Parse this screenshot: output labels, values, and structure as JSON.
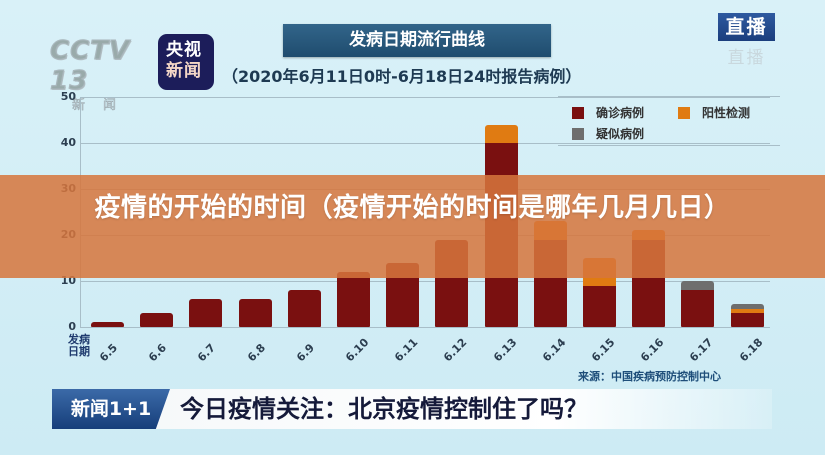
{
  "header": {
    "channel_logo": "CCTV 13",
    "channel_sub": "新闻",
    "app_badge_line1": "央视",
    "app_badge_line2": "新闻",
    "title": "发病日期流行曲线",
    "subtitle": "（2020年6月11日0时-6月18日24时报告病例）",
    "live_badge": "直播",
    "live_badge_shadow": "直播"
  },
  "banner": {
    "text": "疫情的开始的时间（疫情开始的时间是哪年几月几日）"
  },
  "footer": {
    "source": "来源：中国疾病预防控制中心",
    "program_tag": "新闻1+1",
    "headline": "今日疫情关注：北京疫情控制住了吗？"
  },
  "colors": {
    "confirmed": "#7a1010",
    "positive": "#e07b12",
    "suspected": "#6e6e6e",
    "banner": "#d6763c"
  },
  "chart_data": {
    "type": "bar",
    "stacked": true,
    "title": "发病日期流行曲线",
    "subtitle": "（2020年6月11日0时-6月18日24时报告病例）",
    "xlabel": "发病日期",
    "ylabel": "",
    "ylim": [
      0,
      50
    ],
    "yticks": [
      0,
      10,
      20,
      30,
      40,
      50
    ],
    "grid": true,
    "legend_position": "top-right",
    "categories": [
      "6.5",
      "6.6",
      "6.7",
      "6.8",
      "6.9",
      "6.10",
      "6.11",
      "6.12",
      "6.13",
      "6.14",
      "6.15",
      "6.16",
      "6.17",
      "6.18"
    ],
    "series": [
      {
        "name": "确诊病例",
        "color": "#7a1010",
        "values": [
          1,
          3,
          6,
          6,
          8,
          12,
          14,
          19,
          40,
          19,
          9,
          19,
          8,
          3
        ]
      },
      {
        "name": "阳性检测",
        "color": "#e07b12",
        "values": [
          0,
          0,
          0,
          0,
          0,
          0,
          0,
          0,
          4,
          4,
          6,
          2,
          0,
          1
        ]
      },
      {
        "name": "疑似病例",
        "color": "#6e6e6e",
        "values": [
          0,
          0,
          0,
          0,
          0,
          0,
          0,
          0,
          0,
          0,
          0,
          0,
          2,
          1
        ]
      }
    ],
    "source": "来源：中国疾病预防控制中心"
  }
}
